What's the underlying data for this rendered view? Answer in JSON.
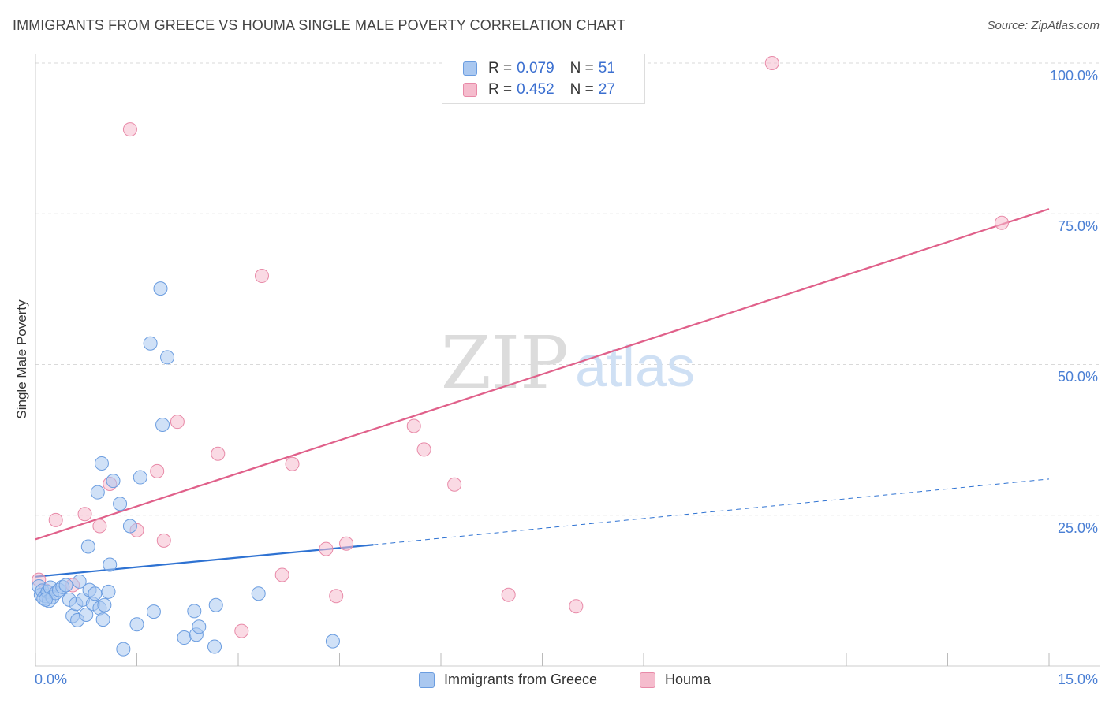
{
  "header": {
    "title": "IMMIGRANTS FROM GREECE VS HOUMA SINGLE MALE POVERTY CORRELATION CHART",
    "source": "Source: ZipAtlas.com"
  },
  "watermark": {
    "zip": "ZIP",
    "atlas": "atlas"
  },
  "legend": {
    "rows": [
      {
        "r_label": "R = ",
        "r_value": "0.079",
        "n_label": "N = ",
        "n_value": "51"
      },
      {
        "r_label": "R = ",
        "r_value": "0.452",
        "n_label": "N = ",
        "n_value": "27"
      }
    ]
  },
  "bottom_legend": {
    "series1": "Immigrants from Greece",
    "series2": "Houma"
  },
  "colors": {
    "blue_fill": "#aac8f0",
    "blue_stroke": "#6b9de0",
    "blue_line": "#2e72d2",
    "pink_fill": "#f5bccd",
    "pink_stroke": "#e88aa8",
    "pink_line": "#e0608a",
    "grid": "#d9d9d9",
    "tick_text": "#4a7fd4"
  },
  "chart_data": {
    "type": "scatter",
    "title": "IMMIGRANTS FROM GREECE VS HOUMA SINGLE MALE POVERTY CORRELATION CHART",
    "xlabel": "",
    "ylabel": "Single Male Poverty",
    "xlim": [
      0,
      15
    ],
    "ylim": [
      0,
      100
    ],
    "x_tick_labels": [
      "0.0%",
      "15.0%"
    ],
    "y_tick_labels": [
      "100.0%",
      "75.0%",
      "50.0%",
      "25.0%"
    ],
    "y_tick_values": [
      100,
      75,
      50,
      25
    ],
    "legend_placement": "top-center",
    "series": [
      {
        "name": "Immigrants from Greece",
        "color": "blue",
        "points": [
          [
            0.05,
            13.2
          ],
          [
            0.08,
            11.8
          ],
          [
            0.1,
            12.5
          ],
          [
            0.12,
            11.2
          ],
          [
            0.15,
            11.6
          ],
          [
            0.18,
            12.3
          ],
          [
            0.2,
            10.8
          ],
          [
            0.22,
            13.0
          ],
          [
            0.25,
            11.4
          ],
          [
            0.3,
            12.1
          ],
          [
            0.35,
            12.6
          ],
          [
            0.4,
            13.1
          ],
          [
            0.45,
            13.4
          ],
          [
            0.5,
            11.0
          ],
          [
            0.55,
            8.3
          ],
          [
            0.6,
            10.3
          ],
          [
            0.62,
            7.6
          ],
          [
            0.65,
            14.0
          ],
          [
            0.7,
            11.0
          ],
          [
            0.75,
            8.5
          ],
          [
            0.78,
            19.8
          ],
          [
            0.8,
            12.6
          ],
          [
            0.85,
            10.3
          ],
          [
            0.88,
            12.0
          ],
          [
            0.92,
            28.8
          ],
          [
            0.95,
            9.6
          ],
          [
            0.98,
            33.6
          ],
          [
            1.0,
            7.7
          ],
          [
            1.02,
            10.1
          ],
          [
            1.08,
            12.3
          ],
          [
            1.1,
            16.8
          ],
          [
            1.15,
            30.7
          ],
          [
            1.25,
            26.9
          ],
          [
            1.3,
            2.8
          ],
          [
            1.4,
            23.2
          ],
          [
            1.5,
            6.9
          ],
          [
            1.55,
            31.3
          ],
          [
            1.7,
            53.5
          ],
          [
            1.75,
            9.0
          ],
          [
            1.85,
            62.6
          ],
          [
            1.88,
            40.0
          ],
          [
            1.95,
            51.2
          ],
          [
            2.2,
            4.7
          ],
          [
            2.35,
            9.1
          ],
          [
            2.38,
            5.2
          ],
          [
            2.42,
            6.5
          ],
          [
            2.65,
            3.2
          ],
          [
            2.67,
            10.1
          ],
          [
            3.3,
            12.0
          ],
          [
            4.4,
            4.1
          ],
          [
            0.15,
            11.0
          ]
        ],
        "trend": {
          "x_solid": [
            0,
            5
          ],
          "y_solid": [
            14.8,
            20.1
          ],
          "x_dashed": [
            5,
            15
          ],
          "y_dashed": [
            20.1,
            31.0
          ]
        }
      },
      {
        "name": "Houma",
        "color": "pink",
        "points": [
          [
            0.05,
            14.3
          ],
          [
            0.3,
            24.2
          ],
          [
            0.55,
            13.4
          ],
          [
            0.73,
            25.2
          ],
          [
            0.95,
            23.2
          ],
          [
            1.1,
            30.2
          ],
          [
            1.4,
            89.0
          ],
          [
            1.5,
            22.5
          ],
          [
            1.8,
            32.3
          ],
          [
            1.9,
            20.8
          ],
          [
            2.1,
            40.5
          ],
          [
            2.7,
            35.2
          ],
          [
            3.05,
            5.8
          ],
          [
            3.35,
            64.7
          ],
          [
            3.65,
            15.1
          ],
          [
            3.8,
            33.5
          ],
          [
            4.3,
            19.4
          ],
          [
            4.45,
            11.6
          ],
          [
            4.6,
            20.3
          ],
          [
            5.6,
            39.8
          ],
          [
            5.75,
            35.9
          ],
          [
            6.2,
            30.1
          ],
          [
            7.0,
            11.8
          ],
          [
            8.0,
            9.9
          ],
          [
            10.9,
            100.0
          ],
          [
            14.3,
            73.5
          ],
          [
            0.15,
            12.5
          ]
        ],
        "trend": {
          "x": [
            0,
            15
          ],
          "y": [
            21.0,
            75.8
          ]
        }
      }
    ]
  }
}
